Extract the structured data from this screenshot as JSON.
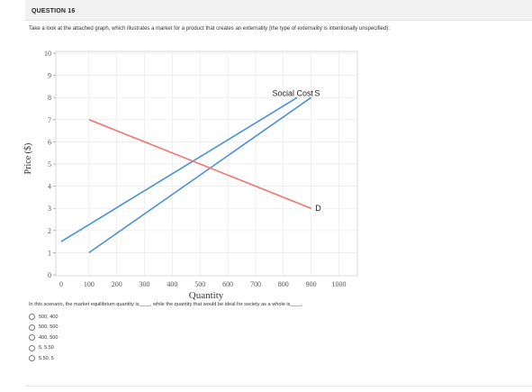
{
  "question": {
    "number_label": "QUESTION 16",
    "prompt": "Take a look at the attached graph, which illustrates a market for a product that creates an externality (the type of externality is intentionally unspecified):",
    "stem": "In this scenario, the market equilibrium quantity is____, while the quantity that would be ideal for society as a whole is____.",
    "options": [
      "500, 400",
      "500, 500",
      "400, 500",
      "5, 5.50",
      "5.50, 5"
    ]
  },
  "chart_data": {
    "type": "line",
    "xlabel": "Quantity",
    "ylabel": "Price ($)",
    "xlim": [
      0,
      1000
    ],
    "ylim": [
      0,
      10
    ],
    "x_ticks": [
      0,
      100,
      200,
      300,
      400,
      500,
      600,
      700,
      800,
      900,
      1000
    ],
    "y_ticks": [
      0,
      1,
      2,
      3,
      4,
      5,
      6,
      7,
      8,
      9,
      10
    ],
    "grid": true,
    "series": [
      {
        "name": "Social Cost",
        "color": "#4a90d9",
        "x": [
          0,
          850
        ],
        "y": [
          1.5,
          8.0
        ]
      },
      {
        "name": "S",
        "color": "#4a90d9",
        "x": [
          100,
          900
        ],
        "y": [
          1.0,
          8.0
        ]
      },
      {
        "name": "D",
        "color": "#f07470",
        "x": [
          100,
          900
        ],
        "y": [
          7.0,
          3.0
        ]
      }
    ],
    "annotations": [
      {
        "text": "Social Cost",
        "x": 760,
        "y": 8.2
      },
      {
        "text": "S",
        "x": 912,
        "y": 8.2
      },
      {
        "text": "D",
        "x": 915,
        "y": 3.0
      }
    ]
  }
}
